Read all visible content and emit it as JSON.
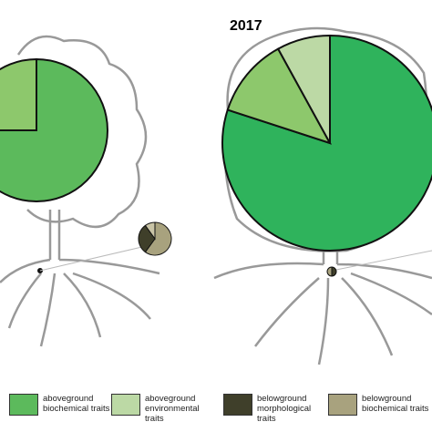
{
  "chart_data": [
    {
      "type": "pie",
      "values": [
        75,
        25
      ],
      "colors": [
        "#5cba5c",
        "#8dc86c"
      ]
    },
    {
      "type": "pie",
      "values": [
        60,
        30,
        10
      ],
      "colors": [
        "#a8a27e",
        "#3f3f2a",
        "#c9c4a6"
      ]
    },
    {
      "type": "pie",
      "title": "2017",
      "values": [
        80,
        12,
        8
      ],
      "colors": [
        "#2fb35c",
        "#8dc86c",
        "#bcd9a5"
      ]
    },
    {
      "type": "pie",
      "values": [
        50,
        50
      ],
      "colors": [
        "#3f3f2a",
        "#a8a27e"
      ]
    }
  ],
  "legend": {
    "items": [
      {
        "label": "aboveground biochemical traits",
        "color": "#5cba5c"
      },
      {
        "label": "aboveground environmental traits",
        "color": "#bcd9a5"
      },
      {
        "label": "belowground morphological traits",
        "color": "#3f3f2a"
      },
      {
        "label": "belowground biochemical traits",
        "color": "#a8a27e"
      }
    ]
  }
}
